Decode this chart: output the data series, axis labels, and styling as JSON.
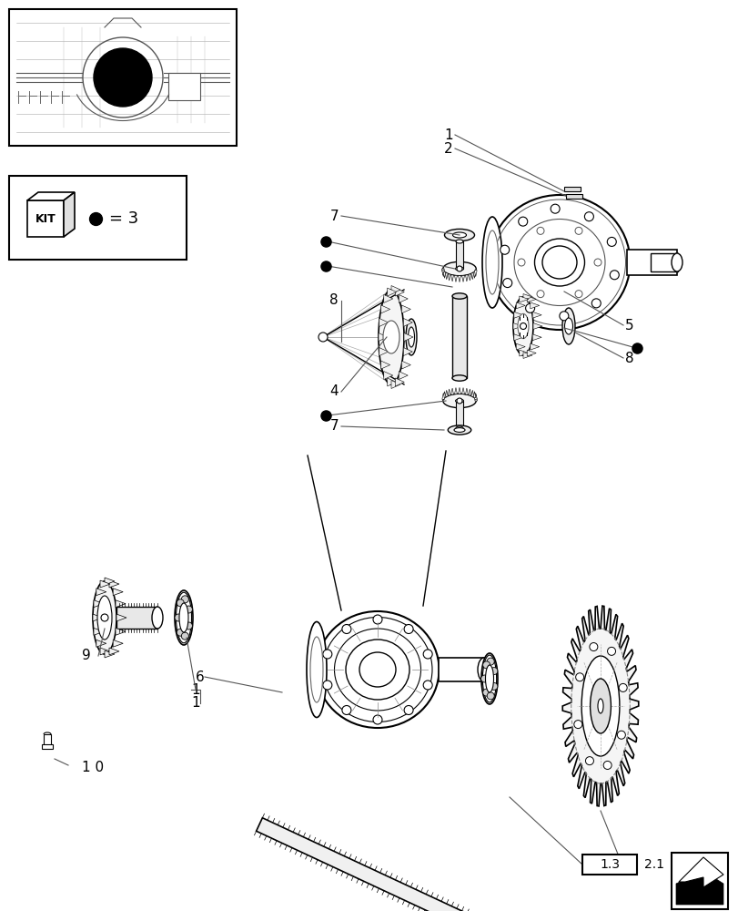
{
  "bg_color": "#ffffff",
  "line_color": "#000000",
  "lc": "#333333",
  "gc": "#888888",
  "page_ref_boxed": "1.3",
  "page_ref_free": "2.1",
  "label_fs": 11
}
